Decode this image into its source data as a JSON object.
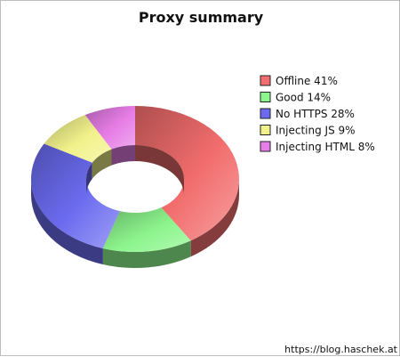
{
  "chart_data": {
    "type": "pie",
    "variant": "3d-donut",
    "title": "Proxy summary",
    "labels": [
      "Offline 41%",
      "Good 14%",
      "No HTTPS 28%",
      "Injecting JS 9%",
      "Injecting HTML 8%"
    ],
    "categories": [
      "Offline",
      "Good",
      "No HTTPS",
      "Injecting JS",
      "Injecting HTML"
    ],
    "values": [
      41,
      14,
      28,
      9,
      8
    ],
    "colors": [
      "#f26d6d",
      "#8cf58c",
      "#6b6bf0",
      "#f2f28c",
      "#e77de7"
    ],
    "legend_position": "right"
  },
  "credit": "https://blog.haschek.at"
}
